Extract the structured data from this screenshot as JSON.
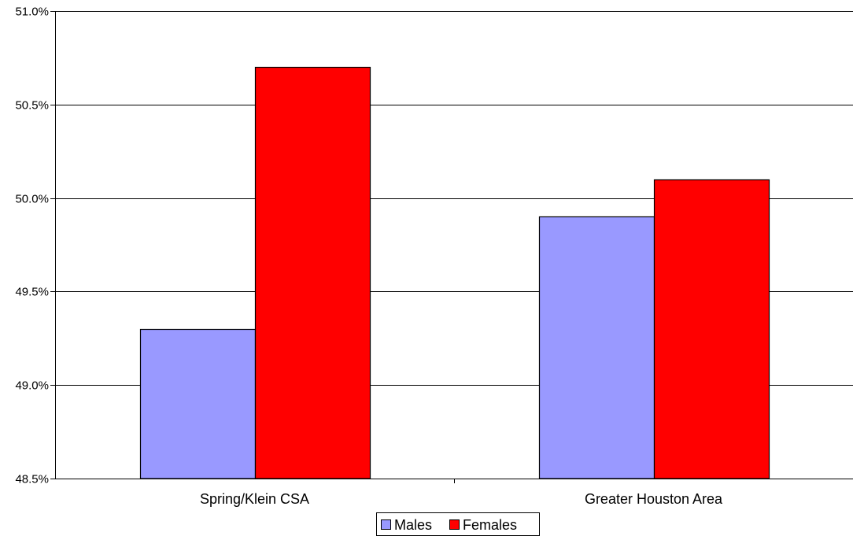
{
  "chart_data": {
    "type": "bar",
    "categories": [
      "Spring/Klein CSA",
      "Greater Houston Area"
    ],
    "series": [
      {
        "name": "Males",
        "values": [
          49.3,
          49.9
        ],
        "color": "#9999FF"
      },
      {
        "name": "Females",
        "values": [
          50.7,
          50.1
        ],
        "color": "#FF0000"
      }
    ],
    "ylim": [
      48.5,
      51.0
    ],
    "ytick_labels": [
      "48.5%",
      "49.0%",
      "49.5%",
      "50.0%",
      "50.5%",
      "51.0%"
    ],
    "ytick_values": [
      48.5,
      49.0,
      49.5,
      50.0,
      50.5,
      51.0
    ],
    "grid": true,
    "legend": "bottom-center",
    "title": "",
    "xlabel": "",
    "ylabel": ""
  }
}
